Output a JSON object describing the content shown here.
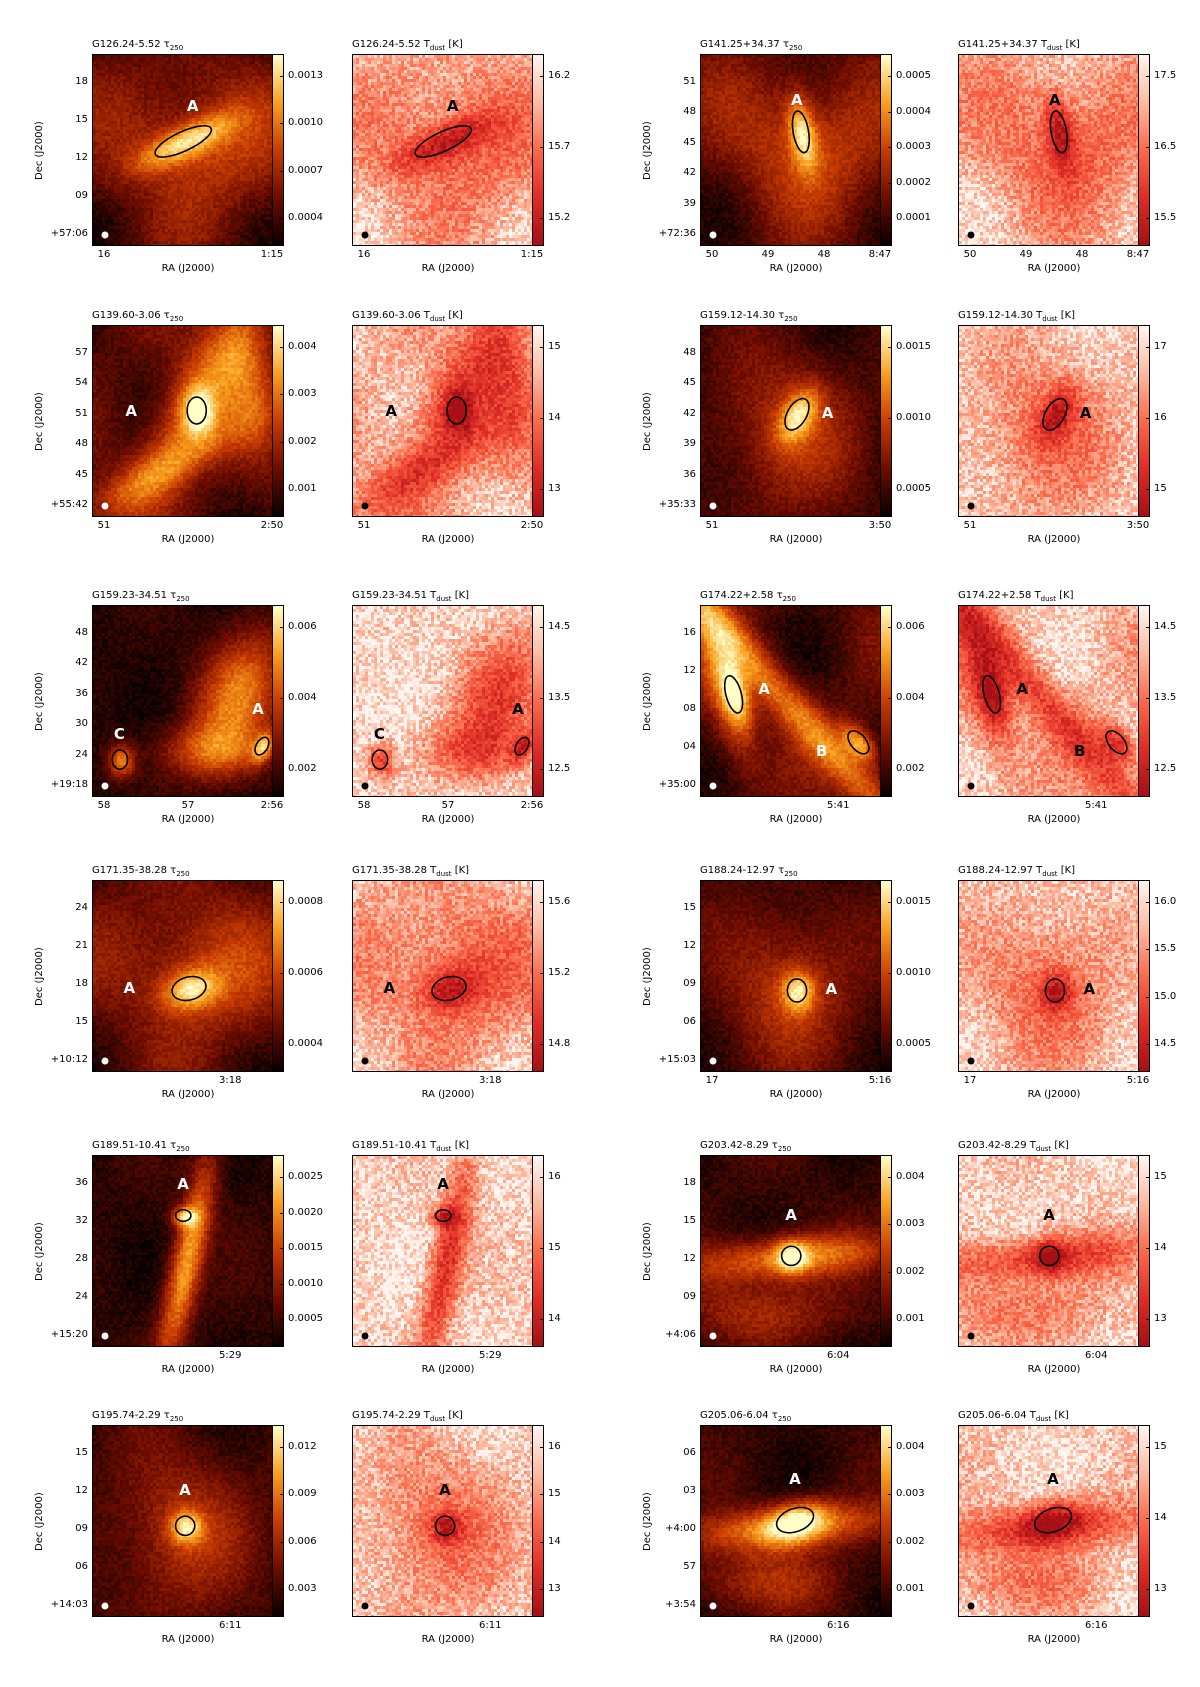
{
  "figure": {
    "xlabel": "RA (J2000)",
    "ylabel": "Dec (J2000)",
    "tau_symbol": "τ",
    "tau_sub": "250",
    "tdust_symbol": "T",
    "tdust_sub": "dust",
    "tdust_unit": " [K]"
  },
  "chart_data": [
    {
      "type": "heatmap",
      "field": "G126.24-5.52",
      "seed": 11,
      "style": "diffuse",
      "dec_ticks": [
        "18",
        "15",
        "12",
        "09",
        "+57:06"
      ],
      "ra_ticks": [
        "16",
        "1:15"
      ],
      "tau": {
        "title_field": "G126.24-5.52",
        "colorbar_ticks": [
          "0.0013",
          "0.0010",
          "0.0007",
          "0.0004"
        ]
      },
      "tdust": {
        "title_field": "G126.24-5.52",
        "colorbar_ticks": [
          "16.2",
          "15.7",
          "15.2"
        ]
      },
      "sources": [
        {
          "label": "A"
        }
      ]
    },
    {
      "type": "heatmap",
      "field": "G141.25+34.37",
      "seed": 23,
      "style": "diffuse",
      "dec_ticks": [
        "51",
        "48",
        "45",
        "42",
        "39",
        "+72:36"
      ],
      "ra_ticks": [
        "50",
        "49",
        "48",
        "8:47"
      ],
      "tau": {
        "title_field": "G141.25+34.37",
        "colorbar_ticks": [
          "0.0005",
          "0.0004",
          "0.0003",
          "0.0002",
          "0.0001"
        ]
      },
      "tdust": {
        "title_field": "G141.25+34.37",
        "colorbar_ticks": [
          "17.5",
          "16.5",
          "15.5"
        ]
      },
      "sources": [
        {
          "label": "A"
        }
      ]
    },
    {
      "type": "heatmap",
      "field": "G139.60-3.06",
      "seed": 37,
      "style": "filament",
      "dec_ticks": [
        "57",
        "54",
        "51",
        "48",
        "45",
        "+55:42"
      ],
      "ra_ticks": [
        "51",
        "2:50"
      ],
      "tau": {
        "title_field": "G139.60-3.06",
        "colorbar_ticks": [
          "0.004",
          "0.003",
          "0.002",
          "0.001"
        ]
      },
      "tdust": {
        "title_field": "G139.60-3.06",
        "colorbar_ticks": [
          "15",
          "14",
          "13"
        ]
      },
      "sources": [
        {
          "label": "A"
        }
      ]
    },
    {
      "type": "heatmap",
      "field": "G159.12-14.30",
      "seed": 41,
      "style": "compact",
      "dec_ticks": [
        "48",
        "45",
        "42",
        "39",
        "36",
        "+35:33"
      ],
      "ra_ticks": [
        "51",
        "3:50"
      ],
      "tau": {
        "title_field": "G159.12-14.30",
        "colorbar_ticks": [
          "0.0015",
          "0.0010",
          "0.0005"
        ]
      },
      "tdust": {
        "title_field": "G159.12-14.30",
        "colorbar_ticks": [
          "17",
          "16",
          "15"
        ]
      },
      "sources": [
        {
          "label": "A"
        }
      ]
    },
    {
      "type": "heatmap",
      "field": "G159.23-34.51",
      "seed": 53,
      "style": "clouds",
      "dec_ticks": [
        "48",
        "42",
        "36",
        "30",
        "24",
        "+19:18"
      ],
      "ra_ticks": [
        "58",
        "57",
        "2:56"
      ],
      "tau": {
        "title_field": "G159.23-34.51",
        "colorbar_ticks": [
          "0.006",
          "0.004",
          "0.002"
        ]
      },
      "tdust": {
        "title_field": "G159.23-34.51",
        "colorbar_ticks": [
          "14.5",
          "13.5",
          "12.5"
        ]
      },
      "sources": [
        {
          "label": "A"
        },
        {
          "label": "C"
        }
      ]
    },
    {
      "type": "heatmap",
      "field": "G174.22+2.58",
      "seed": 67,
      "style": "diagonal",
      "dec_ticks": [
        "16",
        "12",
        "08",
        "04",
        "+35:00"
      ],
      "ra_ticks": [
        "5:41"
      ],
      "tau": {
        "title_field": "G174.22+2.58",
        "colorbar_ticks": [
          "0.006",
          "0.004",
          "0.002"
        ]
      },
      "tdust": {
        "title_field": "G174.22+2.58",
        "colorbar_ticks": [
          "14.5",
          "13.5",
          "12.5"
        ]
      },
      "sources": [
        {
          "label": "A"
        },
        {
          "label": "B"
        }
      ]
    },
    {
      "type": "heatmap",
      "field": "G171.35-38.28",
      "seed": 71,
      "style": "diffuse",
      "dec_ticks": [
        "24",
        "21",
        "18",
        "15",
        "+10:12"
      ],
      "ra_ticks": [
        "3:18"
      ],
      "tau": {
        "title_field": "G171.35-38.28",
        "colorbar_ticks": [
          "0.0008",
          "0.0006",
          "0.0004"
        ]
      },
      "tdust": {
        "title_field": "G171.35-38.28",
        "colorbar_ticks": [
          "15.6",
          "15.2",
          "14.8"
        ]
      },
      "sources": [
        {
          "label": "A"
        }
      ]
    },
    {
      "type": "heatmap",
      "field": "G188.24-12.97",
      "seed": 83,
      "style": "compact",
      "dec_ticks": [
        "15",
        "12",
        "09",
        "06",
        "+15:03"
      ],
      "ra_ticks": [
        "17",
        "5:16"
      ],
      "tau": {
        "title_field": "G188.24-12.97",
        "colorbar_ticks": [
          "0.0015",
          "0.0010",
          "0.0005"
        ]
      },
      "tdust": {
        "title_field": "G188.24-12.97",
        "colorbar_ticks": [
          "16.0",
          "15.5",
          "15.0",
          "14.5"
        ]
      },
      "sources": [
        {
          "label": "A"
        }
      ]
    },
    {
      "type": "heatmap",
      "field": "G189.51-10.41",
      "seed": 97,
      "style": "vertical",
      "dec_ticks": [
        "36",
        "32",
        "28",
        "24",
        "+15:20"
      ],
      "ra_ticks": [
        "5:29"
      ],
      "tau": {
        "title_field": "G189.51-10.41",
        "colorbar_ticks": [
          "0.0025",
          "0.0020",
          "0.0015",
          "0.0010",
          "0.0005"
        ]
      },
      "tdust": {
        "title_field": "G189.51-10.41",
        "colorbar_ticks": [
          "16",
          "15",
          "14"
        ]
      },
      "sources": [
        {
          "label": "A"
        }
      ]
    },
    {
      "type": "heatmap",
      "field": "G203.42-8.29",
      "seed": 103,
      "style": "arc",
      "dec_ticks": [
        "18",
        "15",
        "12",
        "09",
        "+4:06"
      ],
      "ra_ticks": [
        "6:04"
      ],
      "tau": {
        "title_field": "G203.42-8.29",
        "colorbar_ticks": [
          "0.004",
          "0.003",
          "0.002",
          "0.001"
        ]
      },
      "tdust": {
        "title_field": "G203.42-8.29",
        "colorbar_ticks": [
          "15",
          "14",
          "13"
        ]
      },
      "sources": [
        {
          "label": "A"
        }
      ]
    },
    {
      "type": "heatmap",
      "field": "G195.74-2.29",
      "seed": 113,
      "style": "compact",
      "dec_ticks": [
        "15",
        "12",
        "09",
        "06",
        "+14:03"
      ],
      "ra_ticks": [
        "6:11"
      ],
      "tau": {
        "title_field": "G195.74-2.29",
        "colorbar_ticks": [
          "0.012",
          "0.009",
          "0.006",
          "0.003"
        ]
      },
      "tdust": {
        "title_field": "G195.74-2.29",
        "colorbar_ticks": [
          "16",
          "15",
          "14",
          "13"
        ]
      },
      "sources": [
        {
          "label": "A"
        }
      ]
    },
    {
      "type": "heatmap",
      "field": "G205.06-6.04",
      "seed": 127,
      "style": "arc",
      "dec_ticks": [
        "06",
        "03",
        "+4:00",
        "57",
        "+3:54"
      ],
      "ra_ticks": [
        "6:16"
      ],
      "tau": {
        "title_field": "G205.06-6.04",
        "colorbar_ticks": [
          "0.004",
          "0.003",
          "0.002",
          "0.001"
        ]
      },
      "tdust": {
        "title_field": "G205.06-6.04",
        "colorbar_ticks": [
          "15",
          "14",
          "13"
        ]
      },
      "sources": [
        {
          "label": "A"
        }
      ]
    }
  ]
}
